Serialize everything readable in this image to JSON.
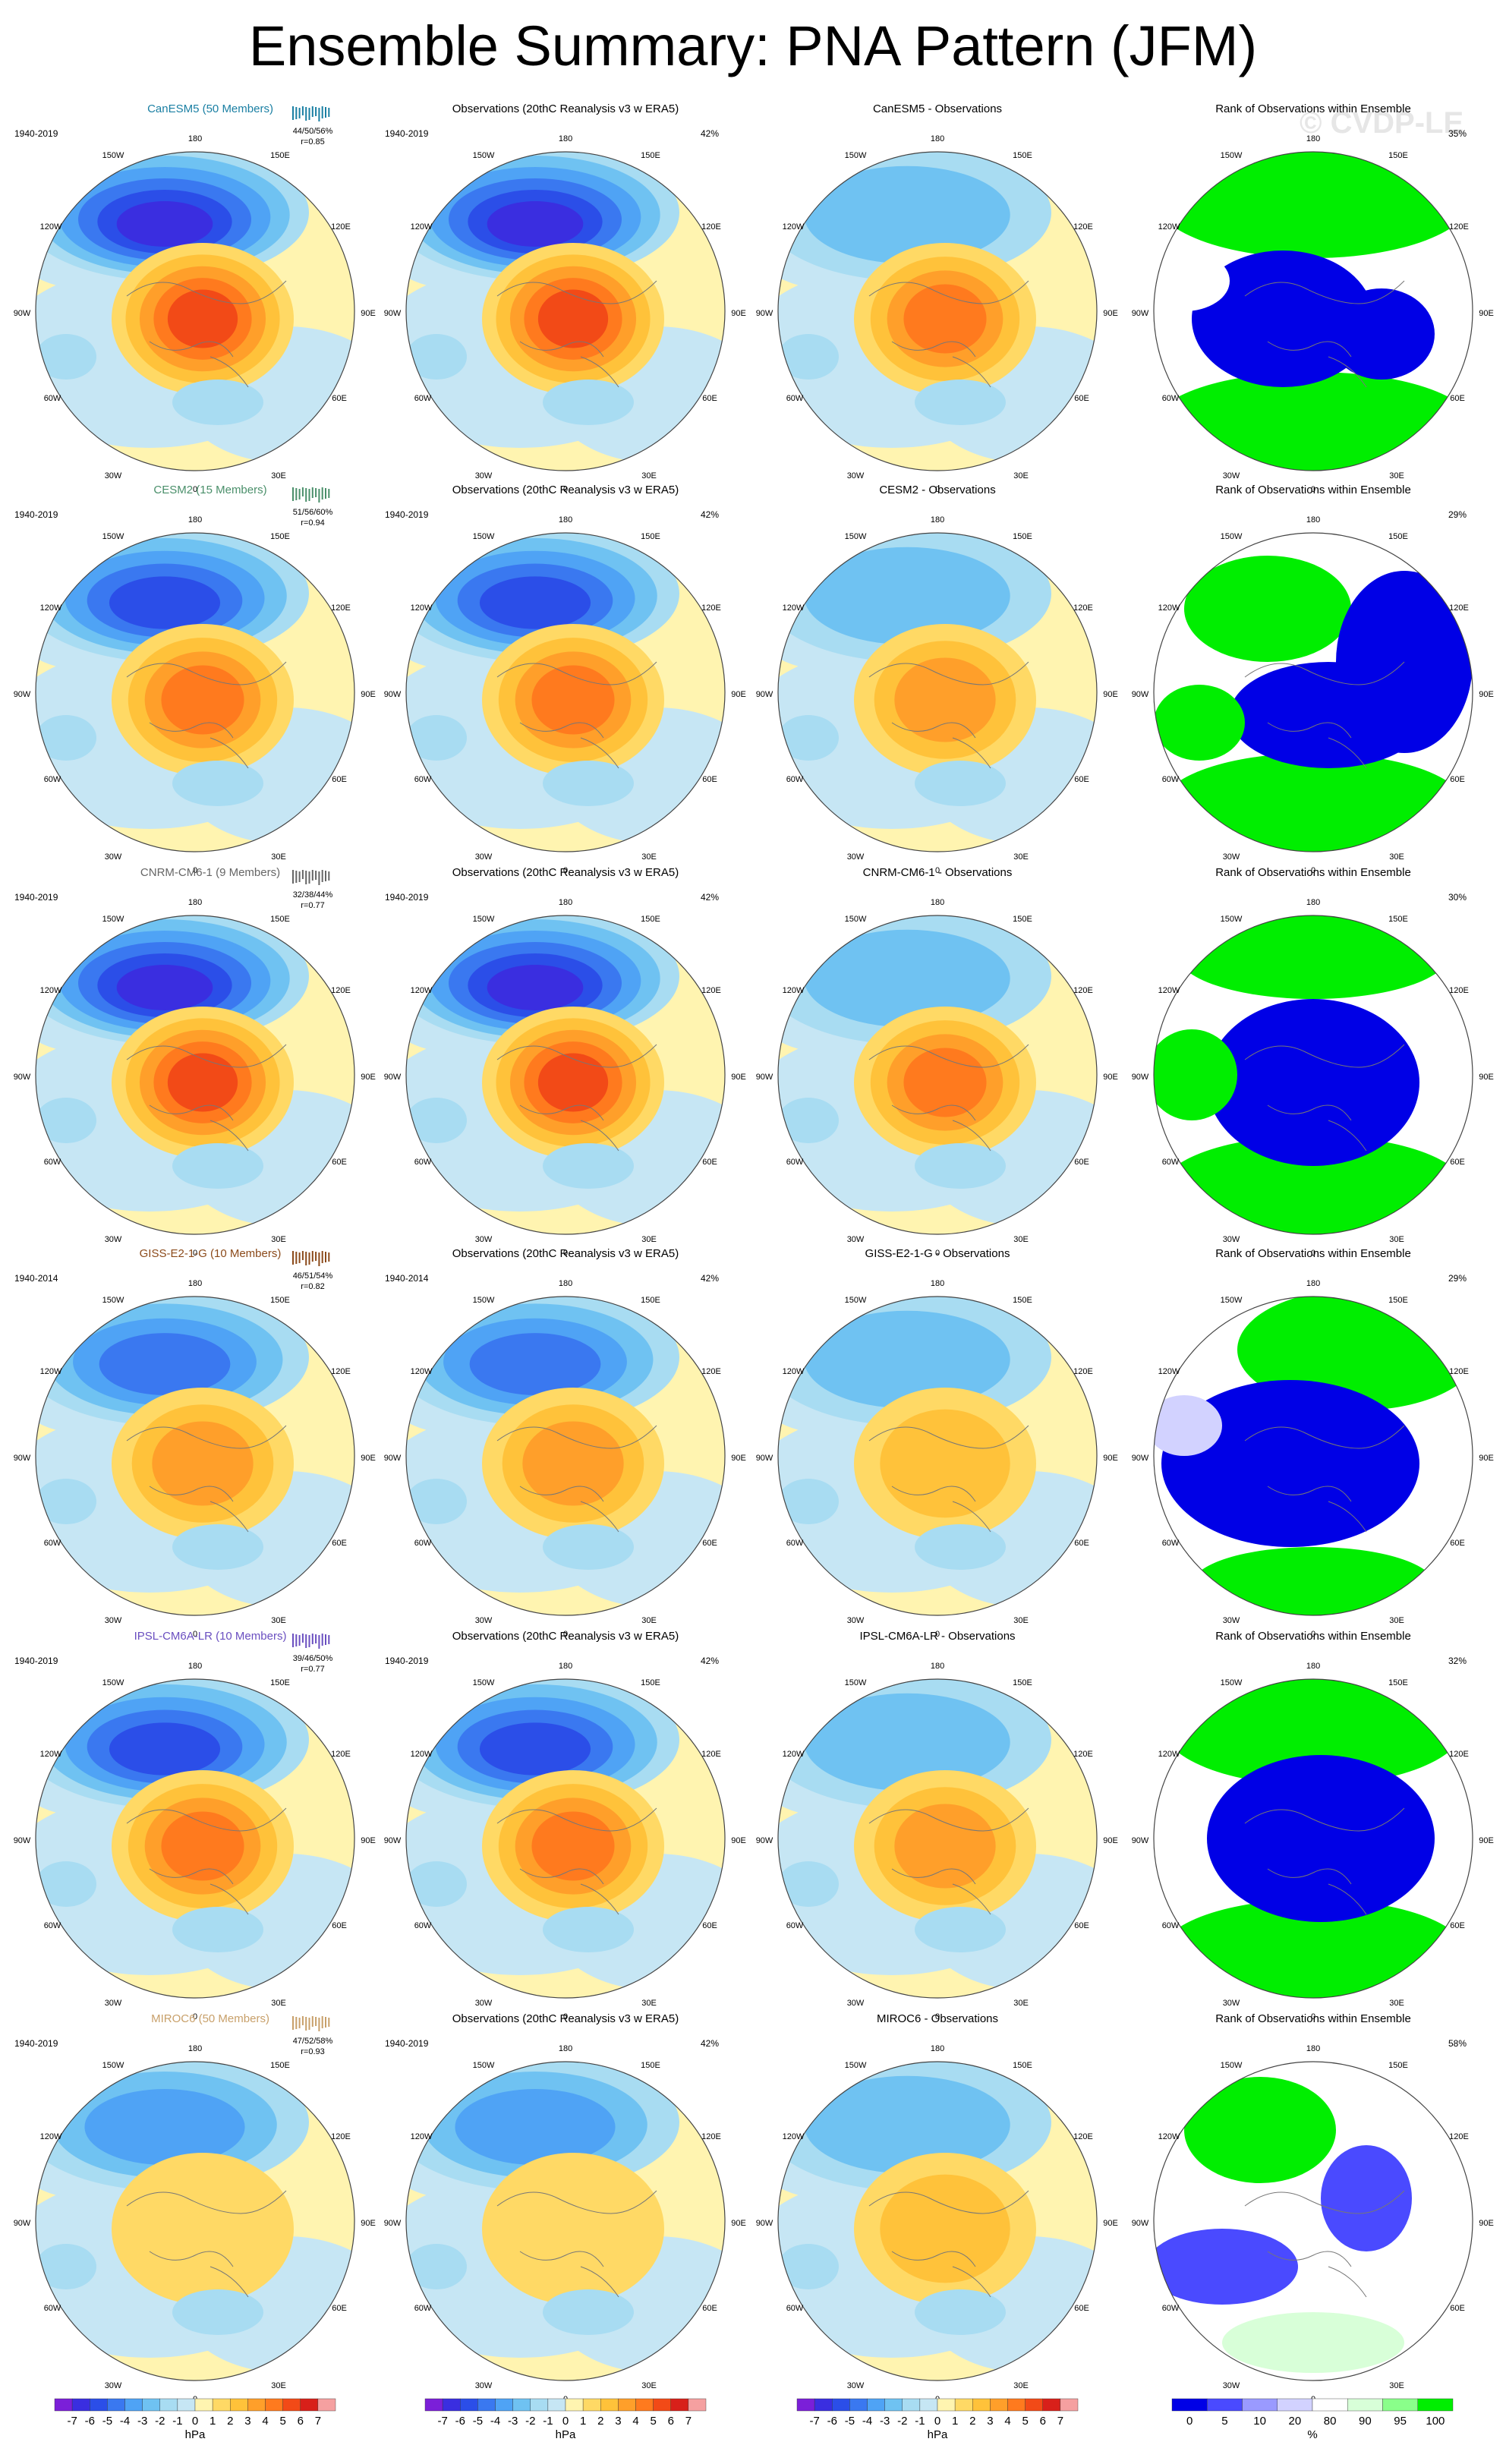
{
  "title": "Ensemble Summary: PNA Pattern (JFM)",
  "watermark": "© CVDP-LE",
  "obs_title": "Observations (20thC Reanalysis v3 w ERA5)",
  "rank_title": "Rank of Observations within Ensemble",
  "diff_suffix": " - Observations",
  "lon_labels": {
    "top": "180",
    "bottom": "0",
    "left": "90W",
    "right": "90E",
    "tl1": "150W",
    "tl2": "120W",
    "tr1": "150E",
    "tr2": "120E",
    "bl1": "60W",
    "bl2": "30W",
    "br1": "60E",
    "br2": "30E"
  },
  "colors": {
    "model_title_default": "#1f6f8b"
  },
  "rows": [
    {
      "model": "CanESM5 (50 Members)",
      "model_color": "#1a7fa3",
      "period": "1940-2019",
      "pct": "44/50/56%",
      "r": "r=0.85",
      "obs_pct": "42%",
      "rank_pct": "35%",
      "short": "CanESM5"
    },
    {
      "model": "CESM2 (15 Members)",
      "model_color": "#4a8f6a",
      "period": "1940-2019",
      "pct": "51/56/60%",
      "r": "r=0.94",
      "obs_pct": "42%",
      "rank_pct": "29%",
      "short": "CESM2"
    },
    {
      "model": "CNRM-CM6-1 (9 Members)",
      "model_color": "#666666",
      "period": "1940-2019",
      "pct": "32/38/44%",
      "r": "r=0.77",
      "obs_pct": "42%",
      "rank_pct": "30%",
      "short": "CNRM-CM6-1"
    },
    {
      "model": "GISS-E2-1-G (10 Members)",
      "model_color": "#8b4a1a",
      "period": "1940-2014",
      "pct": "46/51/54%",
      "r": "r=0.82",
      "obs_pct": "42%",
      "rank_pct": "29%",
      "short": "GISS-E2-1-G"
    },
    {
      "model": "IPSL-CM6A-LR (10 Members)",
      "model_color": "#6a4fc0",
      "period": "1940-2019",
      "pct": "39/46/50%",
      "r": "r=0.77",
      "obs_pct": "42%",
      "rank_pct": "32%",
      "short": "IPSL-CM6A-LR"
    },
    {
      "model": "MIROC6 (50 Members)",
      "model_color": "#c8a06a",
      "period": "1940-2019",
      "pct": "47/52/58%",
      "r": "r=0.93",
      "obs_pct": "42%",
      "rank_pct": "58%",
      "short": "MIROC6"
    }
  ],
  "colorbar_hpa": {
    "unit": "hPa",
    "labels": [
      "-7",
      "-6",
      "-5",
      "-4",
      "-3",
      "-2",
      "-1",
      "0",
      "1",
      "2",
      "3",
      "4",
      "5",
      "6",
      "7"
    ],
    "colors": [
      "#7b1fd8",
      "#3a2ee0",
      "#2b4ee8",
      "#3a78f0",
      "#4fa3f5",
      "#6fc2f2",
      "#a8dcf2",
      "#c6e6f4",
      "#fff4b0",
      "#ffd965",
      "#ffc23a",
      "#ff9f2a",
      "#ff7a1e",
      "#f24a17",
      "#d8201a",
      "#f5a0a0"
    ]
  },
  "colorbar_rank": {
    "unit": "%",
    "labels": [
      "0",
      "5",
      "10",
      "20",
      "80",
      "90",
      "95",
      "100"
    ],
    "colors": [
      "#0000e6",
      "#4a4aff",
      "#9a9aff",
      "#d2d2ff",
      "#ffffff",
      "#d8ffd8",
      "#8aff8a",
      "#00ee00"
    ]
  }
}
